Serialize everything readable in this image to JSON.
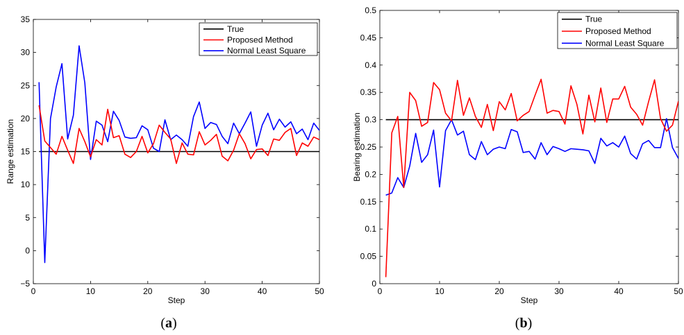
{
  "chart_data": [
    {
      "type": "line",
      "caption_open": "(",
      "caption_letter": "a",
      "caption_close": ")",
      "xlabel": "Step",
      "ylabel": "Range estimation",
      "xlim": [
        0,
        50
      ],
      "ylim": [
        -5,
        35
      ],
      "xticks": [
        0,
        10,
        20,
        30,
        40,
        50
      ],
      "yticks": [
        -5,
        0,
        5,
        10,
        15,
        20,
        25,
        30,
        35
      ],
      "grid": false,
      "legend_position": "top-right",
      "series": [
        {
          "name": "True",
          "color": "#000000",
          "x": [
            1,
            50
          ],
          "values": [
            15,
            15
          ]
        },
        {
          "name": "Proposed Method",
          "color": "#ff0000",
          "x": [
            1,
            2,
            3,
            4,
            5,
            6,
            7,
            8,
            9,
            10,
            11,
            12,
            13,
            14,
            15,
            16,
            17,
            18,
            19,
            20,
            21,
            22,
            23,
            24,
            25,
            26,
            27,
            28,
            29,
            30,
            31,
            32,
            33,
            34,
            35,
            36,
            37,
            38,
            39,
            40,
            41,
            42,
            43,
            44,
            45,
            46,
            47,
            48,
            49,
            50
          ],
          "values": [
            22.0,
            16.6,
            15.6,
            14.6,
            17.3,
            15.2,
            13.2,
            18.5,
            16.5,
            14.2,
            16.8,
            16.0,
            21.4,
            17.1,
            17.4,
            14.6,
            14.1,
            15.0,
            17.3,
            14.8,
            16.2,
            19.0,
            17.9,
            16.9,
            13.2,
            16.3,
            14.6,
            14.5,
            18.0,
            16.0,
            16.7,
            17.6,
            14.3,
            13.6,
            15.2,
            17.7,
            16.2,
            13.9,
            15.3,
            15.4,
            14.4,
            16.9,
            16.7,
            17.9,
            18.5,
            14.4,
            16.3,
            15.8,
            17.2,
            16.8
          ]
        },
        {
          "name": "Normal Least Square",
          "color": "#0000ff",
          "x": [
            1,
            2,
            3,
            4,
            5,
            6,
            7,
            8,
            9,
            10,
            11,
            12,
            13,
            14,
            15,
            16,
            17,
            18,
            19,
            20,
            21,
            22,
            23,
            24,
            25,
            26,
            27,
            28,
            29,
            30,
            31,
            32,
            33,
            34,
            35,
            36,
            37,
            38,
            39,
            40,
            41,
            42,
            43,
            44,
            45,
            46,
            47,
            48,
            49,
            50
          ],
          "values": [
            25.5,
            -1.8,
            20.0,
            24.8,
            28.3,
            16.9,
            20.5,
            31.0,
            25.4,
            13.8,
            19.6,
            19.0,
            16.5,
            21.1,
            19.7,
            17.2,
            17.0,
            17.1,
            18.9,
            18.3,
            15.5,
            15.0,
            19.8,
            16.8,
            17.5,
            16.8,
            15.8,
            20.3,
            22.5,
            18.5,
            19.4,
            19.1,
            17.3,
            16.2,
            19.3,
            17.7,
            19.3,
            21.0,
            15.8,
            19.0,
            20.8,
            18.3,
            19.9,
            18.7,
            19.5,
            17.7,
            18.4,
            16.8,
            19.3,
            18.2
          ]
        }
      ]
    },
    {
      "type": "line",
      "caption_open": "(",
      "caption_letter": "b",
      "caption_close": ")",
      "xlabel": "Step",
      "ylabel": "Bearing estimation",
      "xlim": [
        0,
        50
      ],
      "ylim": [
        0,
        0.5
      ],
      "xticks": [
        0,
        10,
        20,
        30,
        40,
        50
      ],
      "yticks": [
        0,
        0.05,
        0.1,
        0.15,
        0.2,
        0.25,
        0.3,
        0.35,
        0.4,
        0.45,
        0.5
      ],
      "grid": false,
      "legend_position": "top-right",
      "series": [
        {
          "name": "True",
          "color": "#000000",
          "x": [
            1,
            50
          ],
          "values": [
            0.3,
            0.3
          ]
        },
        {
          "name": "Proposed Method",
          "color": "#ff0000",
          "x": [
            1,
            2,
            3,
            4,
            5,
            6,
            7,
            8,
            9,
            10,
            11,
            12,
            13,
            14,
            15,
            16,
            17,
            18,
            19,
            20,
            21,
            22,
            23,
            24,
            25,
            26,
            27,
            28,
            29,
            30,
            31,
            32,
            33,
            34,
            35,
            36,
            37,
            38,
            39,
            40,
            41,
            42,
            43,
            44,
            45,
            46,
            47,
            48,
            49,
            50
          ],
          "values": [
            0.012,
            0.276,
            0.306,
            0.176,
            0.35,
            0.335,
            0.288,
            0.295,
            0.368,
            0.355,
            0.312,
            0.298,
            0.372,
            0.308,
            0.34,
            0.306,
            0.286,
            0.328,
            0.28,
            0.333,
            0.318,
            0.348,
            0.298,
            0.308,
            0.315,
            0.345,
            0.374,
            0.312,
            0.317,
            0.315,
            0.292,
            0.362,
            0.328,
            0.274,
            0.345,
            0.296,
            0.358,
            0.295,
            0.338,
            0.338,
            0.361,
            0.323,
            0.31,
            0.29,
            0.333,
            0.373,
            0.302,
            0.279,
            0.29,
            0.334
          ]
        },
        {
          "name": "Normal Least Square",
          "color": "#0000ff",
          "x": [
            1,
            2,
            3,
            4,
            5,
            6,
            7,
            8,
            9,
            10,
            11,
            12,
            13,
            14,
            15,
            16,
            17,
            18,
            19,
            20,
            21,
            22,
            23,
            24,
            25,
            26,
            27,
            28,
            29,
            30,
            31,
            32,
            33,
            34,
            35,
            36,
            37,
            38,
            39,
            40,
            41,
            42,
            43,
            44,
            45,
            46,
            47,
            48,
            49,
            50
          ],
          "values": [
            0.162,
            0.166,
            0.194,
            0.176,
            0.215,
            0.275,
            0.222,
            0.236,
            0.281,
            0.177,
            0.28,
            0.3,
            0.272,
            0.279,
            0.236,
            0.227,
            0.26,
            0.236,
            0.246,
            0.25,
            0.247,
            0.282,
            0.278,
            0.24,
            0.242,
            0.228,
            0.258,
            0.236,
            0.251,
            0.247,
            0.242,
            0.247,
            0.246,
            0.245,
            0.243,
            0.22,
            0.266,
            0.252,
            0.258,
            0.25,
            0.27,
            0.238,
            0.228,
            0.256,
            0.262,
            0.249,
            0.249,
            0.302,
            0.249,
            0.229
          ]
        }
      ]
    }
  ]
}
